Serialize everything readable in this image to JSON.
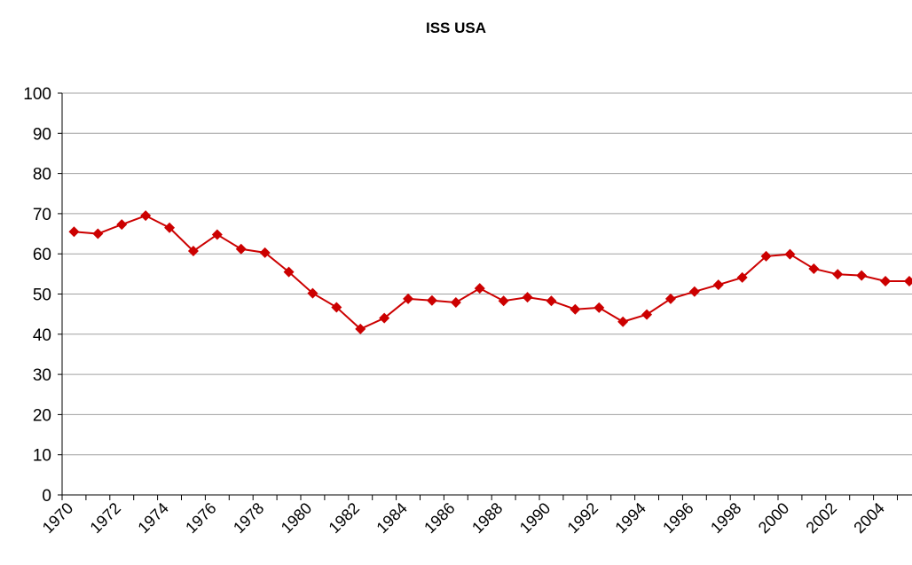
{
  "chart_data": {
    "type": "line",
    "title": "ISS USA",
    "categories": [
      "1970",
      null,
      "1972",
      null,
      "1974",
      null,
      "1976",
      null,
      "1978",
      null,
      "1980",
      null,
      "1982",
      null,
      "1984",
      null,
      "1986",
      null,
      "1988",
      null,
      "1990",
      null,
      "1992",
      null,
      "1994",
      null,
      "1996",
      null,
      "1998",
      null,
      "2000",
      null,
      "2002",
      null,
      "2004",
      null
    ],
    "series": [
      {
        "name": "ISS USA",
        "color": "#cc0000",
        "values": [
          65.5,
          65,
          67.3,
          69.5,
          66.5,
          60.7,
          64.8,
          61.2,
          60.3,
          55.5,
          50.2,
          46.7,
          41.3,
          44,
          48.8,
          48.4,
          47.9,
          51.4,
          48.3,
          49.2,
          48.3,
          46.2,
          46.6,
          43.1,
          44.9,
          48.8,
          50.6,
          52.3,
          54.1,
          59.4,
          59.9,
          56.3,
          54.9,
          54.6,
          53.2,
          53.2
        ]
      }
    ],
    "ylim": [
      0,
      100
    ],
    "yticks": [
      0,
      10,
      20,
      30,
      40,
      50,
      60,
      70,
      80,
      90,
      100
    ],
    "grid": true
  }
}
